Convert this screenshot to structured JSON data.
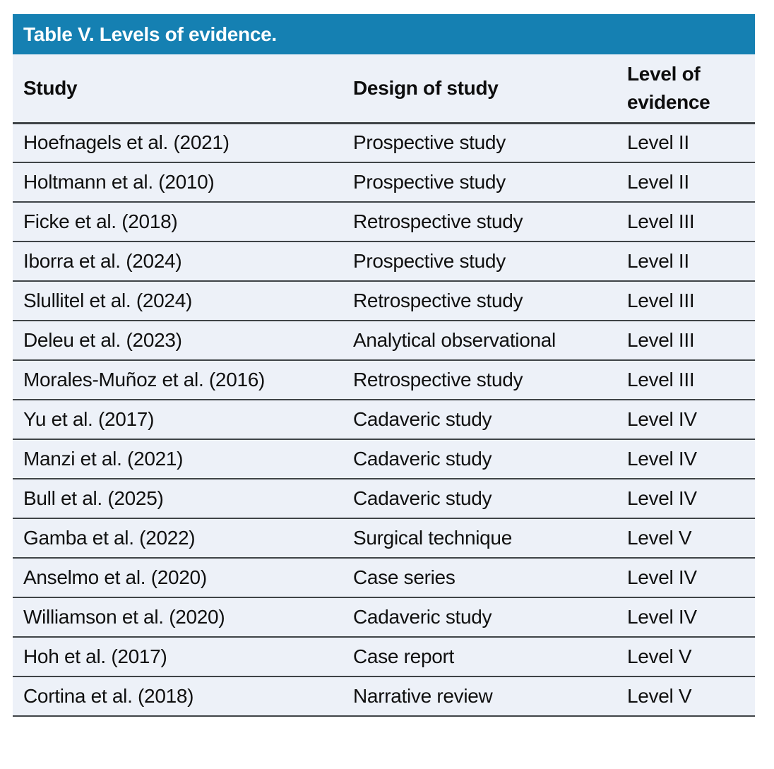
{
  "title": "Table V. Levels of evidence.",
  "colors": {
    "title_bar_bg": "#1580B2",
    "title_text": "#FFFFFF",
    "row_bg": "#EDF1F8",
    "rule": "#3F4447",
    "body_text": "#101010"
  },
  "chart_data": {
    "type": "table",
    "title": "Table V. Levels of evidence.",
    "columns": [
      "Study",
      "Design of study",
      "Level of evidence"
    ],
    "rows": [
      [
        "Hoefnagels et al. (2021)",
        "Prospective study",
        "Level II"
      ],
      [
        "Holtmann et al. (2010)",
        "Prospective study",
        "Level II"
      ],
      [
        "Ficke et al. (2018)",
        "Retrospective study",
        "Level III"
      ],
      [
        "Iborra et al. (2024)",
        "Prospective study",
        "Level II"
      ],
      [
        "Slullitel et al. (2024)",
        "Retrospective study",
        "Level III"
      ],
      [
        "Deleu et al. (2023)",
        "Analytical observational",
        "Level III"
      ],
      [
        "Morales-Muñoz et al. (2016)",
        "Retrospective study",
        "Level III"
      ],
      [
        "Yu et al. (2017)",
        "Cadaveric study",
        "Level IV"
      ],
      [
        "Manzi et al. (2021)",
        "Cadaveric study",
        "Level IV"
      ],
      [
        "Bull et al. (2025)",
        "Cadaveric study",
        "Level IV"
      ],
      [
        "Gamba et al. (2022)",
        "Surgical technique",
        "Level V"
      ],
      [
        "Anselmo et al. (2020)",
        "Case series",
        "Level IV"
      ],
      [
        "Williamson et al. (2020)",
        "Cadaveric study",
        "Level IV"
      ],
      [
        "Hoh et al. (2017)",
        "Case report",
        "Level V"
      ],
      [
        "Cortina et al. (2018)",
        "Narrative review",
        "Level V"
      ]
    ]
  }
}
